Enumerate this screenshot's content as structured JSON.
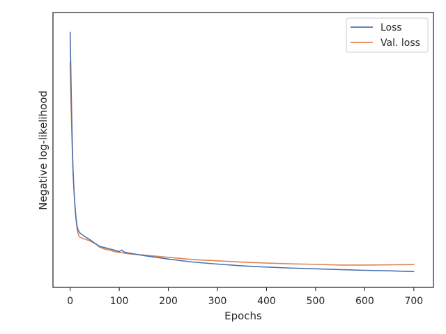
{
  "chart_data": {
    "type": "line",
    "title": "",
    "xlabel": "Epochs",
    "ylabel": "Negative log-likelihood",
    "xlim": [
      -35,
      740
    ],
    "ylim": [
      0,
      100
    ],
    "x_ticks": [
      0,
      100,
      200,
      300,
      400,
      500,
      600,
      700
    ],
    "y_ticks_shown": false,
    "grid": false,
    "legend_position": "top-right",
    "series": [
      {
        "name": "Loss",
        "color": "#4c72b0",
        "x": [
          0,
          1,
          2,
          3,
          4,
          5,
          6,
          8,
          10,
          12,
          14,
          16,
          18,
          20,
          25,
          30,
          40,
          50,
          60,
          70,
          80,
          90,
          100,
          105,
          110,
          120,
          150,
          200,
          250,
          300,
          350,
          400,
          450,
          500,
          550,
          600,
          650,
          700
        ],
        "y": [
          96,
          85,
          74,
          64,
          55,
          47,
          40,
          32,
          26,
          21.5,
          18.5,
          17,
          16.2,
          15.6,
          14.9,
          14.2,
          13,
          11.6,
          10.3,
          9.8,
          9.3,
          8.8,
          8.2,
          8.8,
          8,
          7.6,
          6.6,
          5.2,
          4,
          3.2,
          2.5,
          2,
          1.6,
          1.3,
          1,
          0.7,
          0.5,
          0.2
        ]
      },
      {
        "name": "Val. loss",
        "color": "#dd8452",
        "x": [
          0,
          1,
          2,
          3,
          4,
          5,
          6,
          8,
          10,
          12,
          14,
          16,
          18,
          20,
          25,
          30,
          40,
          50,
          60,
          70,
          80,
          90,
          100,
          110,
          120,
          150,
          200,
          250,
          300,
          350,
          400,
          450,
          500,
          550,
          600,
          650,
          700
        ],
        "y": [
          84,
          74,
          66,
          58,
          51,
          45,
          40,
          32,
          26,
          21,
          17.5,
          15.5,
          14.5,
          14,
          13.5,
          13.2,
          12.5,
          11.5,
          10,
          9.2,
          8.8,
          8.2,
          7.9,
          7.6,
          7.3,
          6.8,
          5.9,
          5,
          4.5,
          4,
          3.6,
          3.3,
          3.1,
          2.8,
          2.8,
          2.9,
          3
        ]
      }
    ]
  }
}
